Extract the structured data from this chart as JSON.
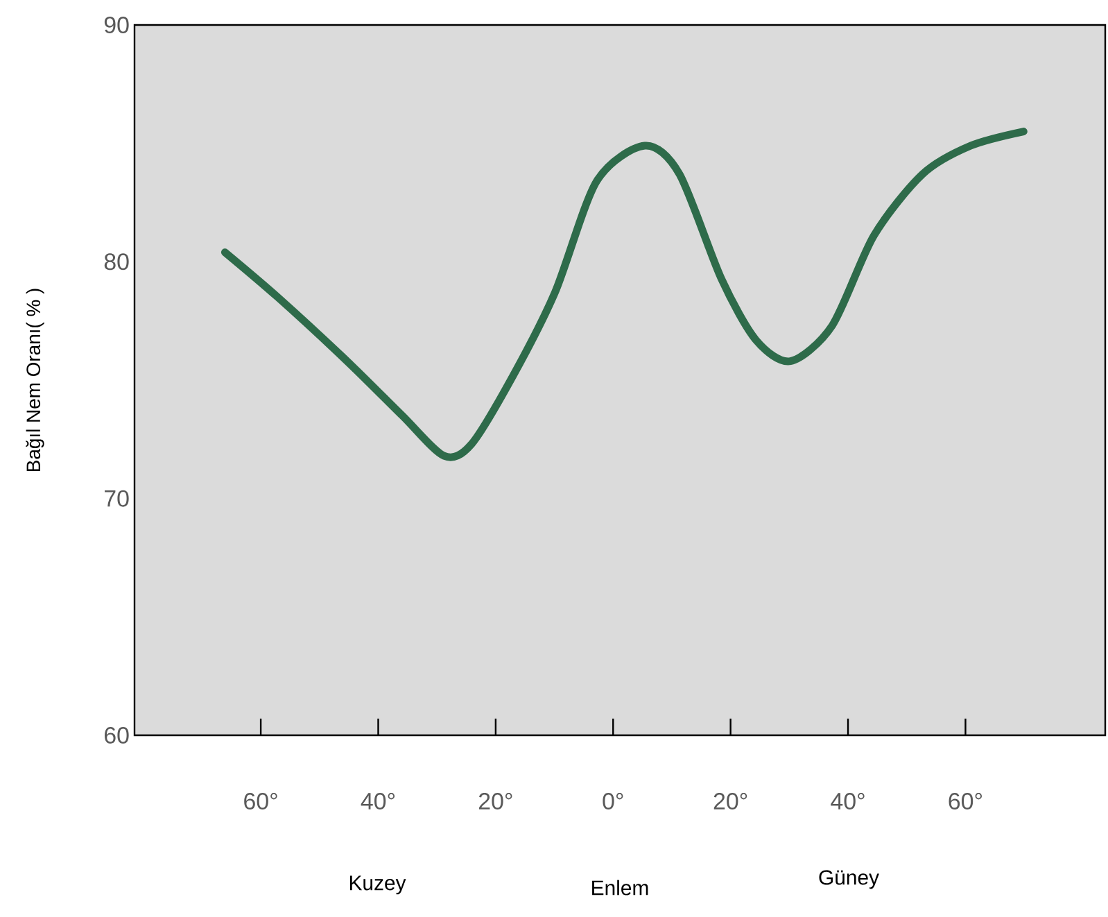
{
  "chart_data": {
    "type": "line",
    "ylabel": "Bağıl Nem Oranı( % )",
    "xlabel": "Enlem",
    "annotations": [
      "Kuzey",
      "Güney"
    ],
    "xlim": [
      81.5,
      -83.8
    ],
    "ylim": [
      60,
      90
    ],
    "yticks": [
      60,
      70,
      80,
      90
    ],
    "xticks": [
      {
        "value": 60,
        "label": "60°"
      },
      {
        "value": 40,
        "label": "40°"
      },
      {
        "value": 20,
        "label": "20°"
      },
      {
        "value": 0,
        "label": "0°"
      },
      {
        "value": -20,
        "label": "20°"
      },
      {
        "value": -40,
        "label": "40°"
      },
      {
        "value": -60,
        "label": "60°"
      }
    ],
    "x": [
      66.1,
      57.1,
      45.3,
      35.9,
      28.8,
      24.1,
      17.0,
      9.9,
      2.8,
      -5.4,
      -11.3,
      -18.4,
      -24.3,
      -30.2,
      -37.3,
      -44.4,
      -52.7,
      -60.9,
      -69.9
    ],
    "series": [
      {
        "color": "#2e6b4a",
        "values": [
          80.4,
          78.5,
          75.8,
          73.5,
          71.8,
          72.3,
          75.2,
          78.7,
          83.4,
          84.9,
          83.7,
          79.3,
          76.7,
          75.8,
          77.3,
          81.1,
          83.7,
          84.9,
          85.5
        ]
      }
    ]
  }
}
